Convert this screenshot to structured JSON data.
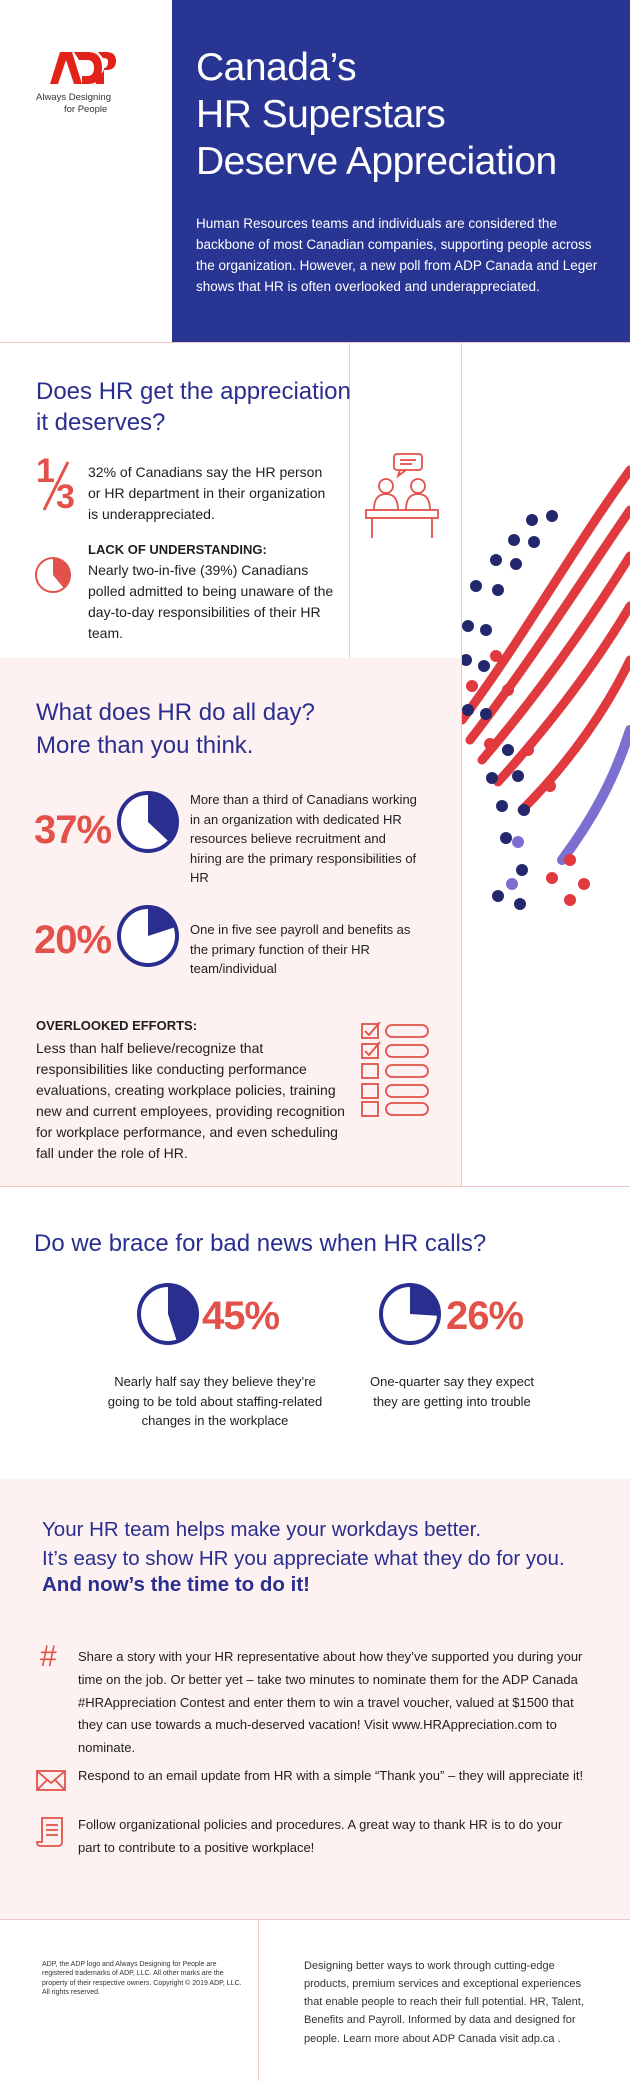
{
  "brand": {
    "logo_text": "ADP",
    "tagline_1": "Always Designing",
    "tagline_2": "for People",
    "colors": {
      "navy": "#283593",
      "red": "#e2524a",
      "purple": "#7b6fd0",
      "blush": "#fdf2f1"
    }
  },
  "header": {
    "title_lines": [
      "Canada’s",
      "HR Superstars",
      "Deserve Appreciation"
    ],
    "intro": "Human Resources teams and individuals are considered the backbone of most Canadian companies, supporting people across the organization. However, a new poll from ADP Canada and Leger shows that HR is often overlooked and underappreciated."
  },
  "section1": {
    "title": "Does HR get the appreciation it deserves?",
    "fraction_num": "1",
    "fraction_den": "3",
    "stat1": "32% of Canadians say the HR person or HR department in their organization is underappreciated.",
    "stat2_heading": "LACK OF UNDERSTANDING:",
    "stat2": "Nearly two-in-five (39%) Canadians polled admitted to being unaware of the day-to-day responsibilities of their HR team.",
    "pie_fraction": 0.39,
    "icon": "meeting-icon"
  },
  "section2": {
    "title_line1": "What does HR do all day?",
    "title_line2": "More than you think.",
    "stat1_pct": "37%",
    "stat1_fraction": 0.37,
    "stat1": "More than a third of Canadians working in an organization with dedicated HR resources believe recruitment and hiring are the primary responsibilities of HR",
    "stat2_pct": "20%",
    "stat2_fraction": 0.2,
    "stat2": "One in five see payroll and benefits as the primary function of their HR team/individual",
    "overlooked_heading": "OVERLOOKED EFFORTS:",
    "overlooked": "Less than half believe/recognize that responsibilities like conducting performance evaluations, creating workplace policies, training new and current employees, providing recognition for workplace performance, and even scheduling fall under the role of HR.",
    "icon": "checklist-icon"
  },
  "section3": {
    "title": "Do we brace for bad news when HR calls?",
    "stat1_pct": "45%",
    "stat1_fraction": 0.45,
    "stat1": "Nearly half say they believe they’re going to be told about staffing-related changes in the workplace",
    "stat2_pct": "26%",
    "stat2_fraction": 0.26,
    "stat2": "One-quarter say they expect they are getting into trouble"
  },
  "section4": {
    "heading_line1": "Your HR team helps make your workdays better.",
    "heading_line2": "It’s easy to show HR you appreciate what they do for you.",
    "heading_line3": "And now’s the time to do it!",
    "hash_symbol": "#",
    "tip1": "Share a story with your HR representative about how they’ve supported you during your time on the job. Or better yet – take two minutes to nominate them for the ADP Canada #HRAppreciation Contest and enter them to win a travel voucher, valued at $1500 that they can use towards a much-deserved vacation! Visit www.HRAppreciation.com to nominate.",
    "tip2": "Respond to an email update from HR with a simple “Thank you” – they will appreciate it!",
    "tip3": "Follow organizational policies and procedures. A great way to thank HR is to do your part to contribute to a positive workplace!"
  },
  "footer": {
    "legal": "ADP, the ADP logo and Always Designing for People are registered trademarks of ADP, LLC. All other marks are the property of their respective owners. Copyright © 2019 ADP, LLC. All rights reserved.",
    "about": "Designing better ways to work through cutting-edge products, premium services and exceptional experiences that enable people to reach their full potential. HR, Talent, Benefits and Payroll. Informed by data and designed for people. Learn more about ADP Canada visit adp.ca ."
  }
}
